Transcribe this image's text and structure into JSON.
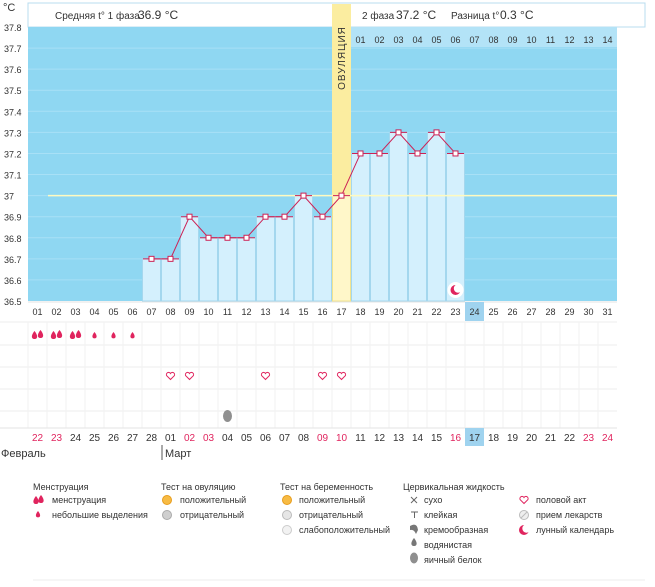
{
  "chart_data": {
    "type": "line",
    "title": "",
    "ylabel": "°C",
    "xlabel": "",
    "ylim": [
      36.5,
      37.8
    ],
    "yticks": [
      "37.8",
      "37.7",
      "37.6",
      "37.5",
      "37.4",
      "37.3",
      "37.2",
      "37.1",
      "37",
      "36.9",
      "36.8",
      "36.7",
      "36.6",
      "36.5"
    ],
    "phase1_label": "Средняя t° 1 фаза",
    "phase1_value": "36.9 °C",
    "phase2_label": "2 фаза",
    "phase2_value": "37.2 °C",
    "diff_label": "Разница t°",
    "diff_value": "0.3 °C",
    "ovulation_label": "ОВУЛЯЦИЯ",
    "ovulation_day": 17,
    "cover_line": 37.0,
    "cycle_days": [
      "01",
      "02",
      "03",
      "04",
      "05",
      "06",
      "07",
      "08",
      "09",
      "10",
      "11",
      "12",
      "13",
      "14",
      "15",
      "16",
      "17",
      "18",
      "19",
      "20",
      "21",
      "22",
      "23",
      "24",
      "25",
      "26",
      "27",
      "28",
      "29",
      "30",
      "31"
    ],
    "today_cycle_day": "24",
    "phase2_days": [
      "01",
      "02",
      "03",
      "04",
      "05",
      "06",
      "07",
      "08",
      "09",
      "10",
      "11",
      "12",
      "13",
      "14"
    ],
    "temperatures": [
      null,
      null,
      null,
      null,
      null,
      null,
      36.7,
      36.7,
      36.9,
      36.8,
      36.8,
      36.8,
      36.9,
      36.9,
      37.0,
      36.9,
      37.0,
      37.2,
      37.2,
      37.3,
      37.2,
      37.3,
      37.2,
      null,
      null,
      null,
      null,
      null,
      null,
      null,
      null
    ],
    "menstruation_days": [
      1,
      2,
      3
    ],
    "spotting_days": [
      4,
      5,
      6
    ],
    "sex_days": [
      8,
      9,
      13,
      16,
      17
    ],
    "egg_white_days": [
      11
    ],
    "moon_day": 23,
    "calendar_dates": [
      "22",
      "23",
      "24",
      "25",
      "26",
      "27",
      "28",
      "01",
      "02",
      "03",
      "04",
      "05",
      "06",
      "07",
      "08",
      "09",
      "10",
      "11",
      "12",
      "13",
      "14",
      "15",
      "16",
      "17",
      "18",
      "19",
      "20",
      "21",
      "22",
      "23",
      "24"
    ],
    "today_date": "17",
    "month_feb": "Февраль",
    "month_mar": "Март"
  },
  "legend": {
    "menstruation_title": "Менструация",
    "menstruation_items": [
      "менструация",
      "небольшие выделения"
    ],
    "ovulation_title": "Тест на овуляцию",
    "ovulation_items": [
      "положительный",
      "отрицательный"
    ],
    "pregnancy_title": "Тест на беременность",
    "pregnancy_items": [
      "положительный",
      "отрицательный",
      "слабоположительный"
    ],
    "cervical_title": "Цервикальная жидкость",
    "cervical_items": [
      "сухо",
      "клейкая",
      "кремообразная",
      "водянистая",
      "яичный белок"
    ],
    "other_items": [
      "половой акт",
      "прием лекарств",
      "лунный календарь"
    ]
  },
  "colors": {
    "sky": "#8fd7f2",
    "bar": "#d4f0fd",
    "bar_stroke": "#a4d7ee",
    "ovulation": "#fbeda0",
    "line": "#cc2255",
    "accent": "#e0245e",
    "today": "#9fd3ef",
    "cover": "#fffac0"
  }
}
